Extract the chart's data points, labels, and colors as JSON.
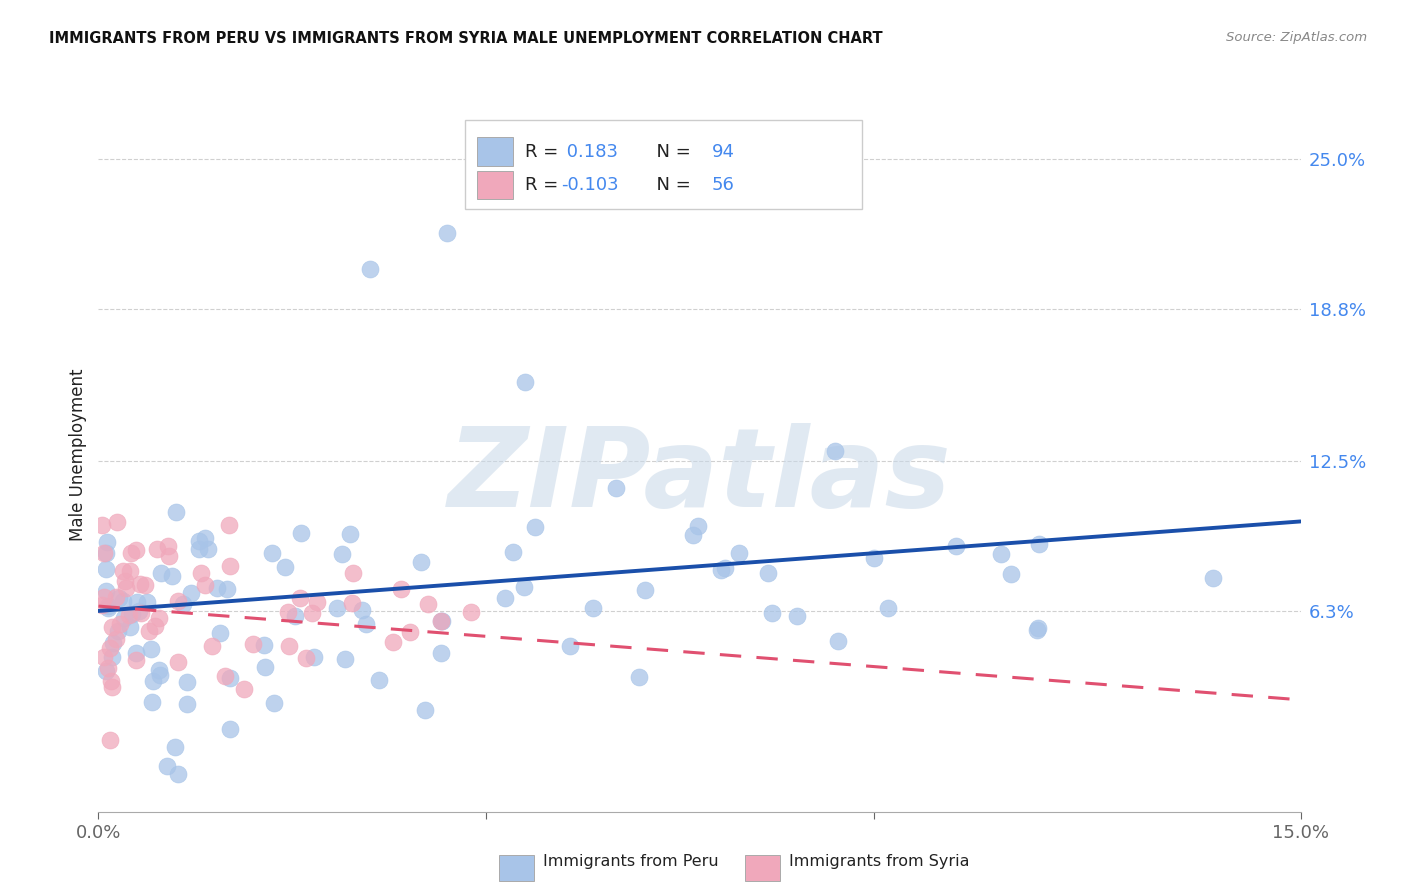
{
  "title": "IMMIGRANTS FROM PERU VS IMMIGRANTS FROM SYRIA MALE UNEMPLOYMENT CORRELATION CHART",
  "source": "Source: ZipAtlas.com",
  "ylabel": "Male Unemployment",
  "ytick_labels": [
    "25.0%",
    "18.8%",
    "12.5%",
    "6.3%"
  ],
  "ytick_values": [
    0.25,
    0.188,
    0.125,
    0.063
  ],
  "xlim": [
    0.0,
    0.155
  ],
  "ylim": [
    -0.02,
    0.275
  ],
  "peru_color": "#a8c4e8",
  "peru_line_color": "#1a4faa",
  "syria_color": "#f0a8bb",
  "syria_line_color": "#e05070",
  "peru_R": 0.183,
  "peru_N": 94,
  "syria_R": -0.103,
  "syria_N": 56,
  "legend_peru_label": "Immigrants from Peru",
  "legend_syria_label": "Immigrants from Syria",
  "background_color": "#ffffff",
  "watermark": "ZIPatlas",
  "grid_color": "#d0d0d0",
  "axis_label_color": "#4488ee",
  "text_color": "#222222",
  "blue_color": "#4488ee"
}
